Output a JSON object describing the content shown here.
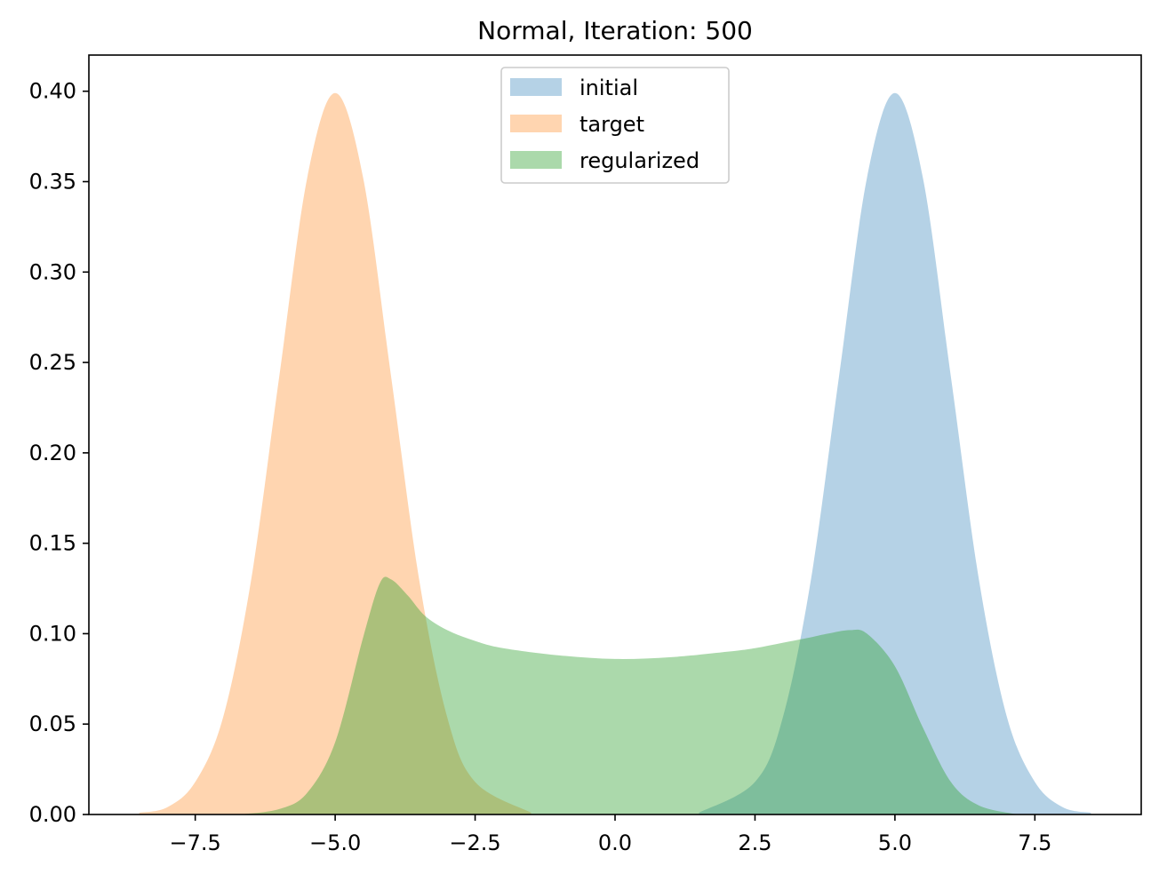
{
  "chart_data": {
    "type": "area",
    "title": "Normal, Iteration: 500",
    "xlabel": "",
    "ylabel": "",
    "xlim": [
      -9.4,
      9.4
    ],
    "ylim": [
      0,
      0.42
    ],
    "xticks": [
      -7.5,
      -5.0,
      -2.5,
      0.0,
      2.5,
      5.0,
      7.5
    ],
    "xtick_labels": [
      "−7.5",
      "−5.0",
      "−2.5",
      "0.0",
      "2.5",
      "5.0",
      "7.5"
    ],
    "yticks": [
      0.0,
      0.05,
      0.1,
      0.15,
      0.2,
      0.25,
      0.3,
      0.35,
      0.4
    ],
    "ytick_labels": [
      "0.00",
      "0.05",
      "0.10",
      "0.15",
      "0.20",
      "0.25",
      "0.30",
      "0.35",
      "0.40"
    ],
    "grid": false,
    "legend_position": "top-center",
    "series": [
      {
        "name": "initial",
        "color": "#1f77b4",
        "opacity": 0.33,
        "x": [
          1.5,
          2.5,
          3.0,
          3.5,
          4.0,
          4.5,
          5.0,
          5.5,
          6.0,
          6.5,
          7.0,
          7.5,
          8.0,
          8.5
        ],
        "y": [
          0.001,
          0.018,
          0.054,
          0.13,
          0.242,
          0.352,
          0.399,
          0.352,
          0.242,
          0.13,
          0.054,
          0.018,
          0.004,
          0.001
        ]
      },
      {
        "name": "target",
        "color": "#ff7f0e",
        "opacity": 0.33,
        "x": [
          -8.5,
          -8.0,
          -7.5,
          -7.0,
          -6.5,
          -6.0,
          -5.5,
          -5.0,
          -4.5,
          -4.0,
          -3.5,
          -3.0,
          -2.5,
          -1.5
        ],
        "y": [
          0.001,
          0.004,
          0.018,
          0.054,
          0.13,
          0.242,
          0.352,
          0.399,
          0.352,
          0.242,
          0.13,
          0.054,
          0.018,
          0.001
        ]
      },
      {
        "name": "regularized",
        "color": "#2ca02c",
        "opacity": 0.4,
        "x": [
          -6.7,
          -6.0,
          -5.5,
          -5.0,
          -4.5,
          -4.2,
          -4.0,
          -3.7,
          -3.4,
          -3.0,
          -2.5,
          -2.0,
          -1.0,
          0.0,
          1.0,
          2.0,
          2.5,
          3.0,
          3.5,
          3.8,
          4.2,
          4.5,
          5.0,
          5.5,
          6.0,
          6.5,
          7.2
        ],
        "y": [
          0.0,
          0.003,
          0.012,
          0.04,
          0.098,
          0.128,
          0.13,
          0.121,
          0.11,
          0.102,
          0.096,
          0.092,
          0.088,
          0.086,
          0.087,
          0.09,
          0.092,
          0.095,
          0.098,
          0.1,
          0.102,
          0.1,
          0.082,
          0.048,
          0.018,
          0.005,
          0.0
        ]
      }
    ]
  }
}
